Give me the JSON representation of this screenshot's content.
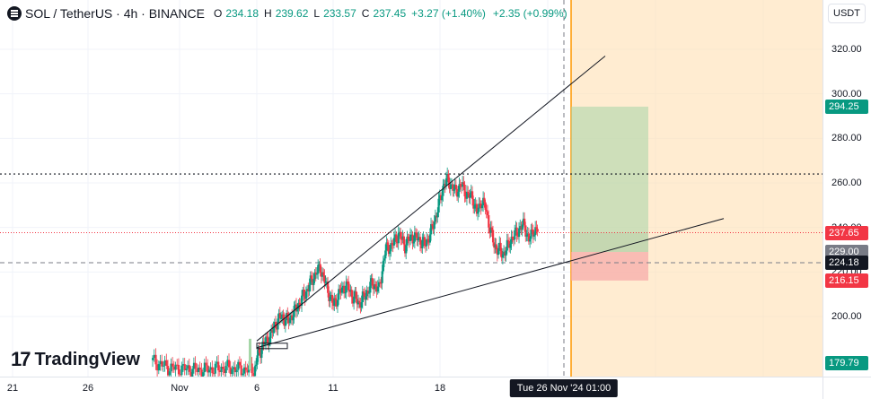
{
  "legend": {
    "symbol": "SOL / TetherUS · 4h · BINANCE",
    "open_label": "O",
    "open": "234.18",
    "high_label": "H",
    "high": "239.62",
    "low_label": "L",
    "low": "233.57",
    "close_label": "C",
    "close": "237.45",
    "change": "+3.27 (+1.40%)",
    "change2": "+2.35 (+0.99%)"
  },
  "currency": "USDT",
  "watermark": "TradingView",
  "price_ticks": [
    "320.00",
    "300.00",
    "280.00",
    "260.00",
    "240.00",
    "220.00",
    "200.00"
  ],
  "time_ticks": [
    "21",
    "26",
    "Nov",
    "6",
    "11",
    "18"
  ],
  "price_tags": [
    {
      "label": "294.25",
      "color": "#089981"
    },
    {
      "label": "237.65",
      "color": "#f23645"
    },
    {
      "label": "229.00",
      "color": "#787b86"
    },
    {
      "label": "224.18",
      "color": "#131722"
    },
    {
      "label": "216.15",
      "color": "#f23645"
    },
    {
      "label": "179.79",
      "color": "#089981"
    }
  ],
  "crosshair_time": "Tue 26 Nov '24  01:00",
  "colors": {
    "up": "#089981",
    "down": "#f23645",
    "profit_zone": "#a5d6a7",
    "loss_zone": "#f7a8a8",
    "future_zone": "#ffe0b2"
  },
  "chart_data": {
    "type": "candlestick",
    "title": "SOL / TetherUS · 4h · BINANCE",
    "ylim": [
      176,
      332
    ],
    "levels": {
      "target": 294.25,
      "current": 237.65,
      "entry": 229.0,
      "crosshair": 224.18,
      "stop": 216.15,
      "future_low": 179.79,
      "horizontal_resistance": 264
    },
    "price_path": [
      [
        0,
        180
      ],
      [
        10,
        177
      ],
      [
        20,
        176.5
      ],
      [
        30,
        176
      ],
      [
        40,
        176.5
      ],
      [
        48,
        177
      ],
      [
        56,
        176.4
      ],
      [
        62,
        176
      ],
      [
        68,
        176.5
      ],
      [
        70,
        182
      ],
      [
        74,
        186
      ],
      [
        78,
        189
      ],
      [
        82,
        191
      ],
      [
        86,
        196
      ],
      [
        92,
        200
      ],
      [
        98,
        198
      ],
      [
        104,
        202
      ],
      [
        110,
        207
      ],
      [
        116,
        212
      ],
      [
        122,
        218
      ],
      [
        128,
        222
      ],
      [
        134,
        213
      ],
      [
        140,
        205
      ],
      [
        146,
        211
      ],
      [
        152,
        214
      ],
      [
        158,
        209
      ],
      [
        164,
        206
      ],
      [
        170,
        210
      ],
      [
        176,
        215
      ],
      [
        182,
        212
      ],
      [
        188,
        230
      ],
      [
        194,
        232
      ],
      [
        200,
        237
      ],
      [
        206,
        232
      ],
      [
        212,
        236
      ],
      [
        218,
        235
      ],
      [
        224,
        232
      ],
      [
        230,
        238
      ],
      [
        236,
        248
      ],
      [
        242,
        260
      ],
      [
        246,
        261
      ],
      [
        252,
        256
      ],
      [
        258,
        259
      ],
      [
        264,
        254
      ],
      [
        268,
        254
      ],
      [
        272,
        246
      ],
      [
        276,
        252
      ],
      [
        280,
        249
      ],
      [
        284,
        240
      ],
      [
        288,
        232
      ],
      [
        292,
        230
      ],
      [
        296,
        228
      ],
      [
        300,
        231
      ],
      [
        304,
        235
      ],
      [
        308,
        237
      ],
      [
        312,
        240
      ],
      [
        316,
        241
      ],
      [
        320,
        234
      ],
      [
        324,
        239
      ],
      [
        328,
        238
      ]
    ]
  }
}
